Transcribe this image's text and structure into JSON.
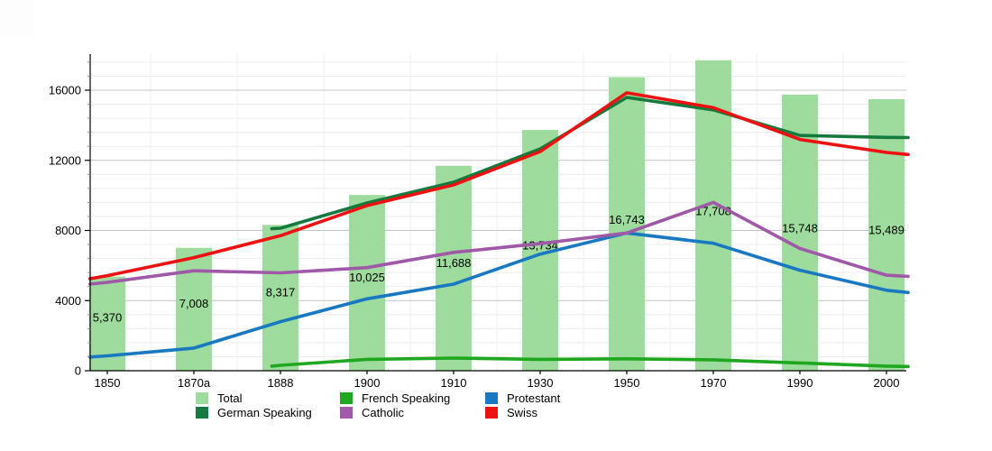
{
  "page": {
    "background": "#ffffff"
  },
  "chart_data": {
    "type": "bar+line",
    "title": "",
    "xlabel": "",
    "ylabel": "",
    "categories": [
      "1850",
      "1870a",
      "1888",
      "1900",
      "1910",
      "1930",
      "1950",
      "1970",
      "1990",
      "2000"
    ],
    "bar_series": {
      "name": "Total",
      "color": "#9EDC9E",
      "values": [
        5370,
        7008,
        8317,
        10025,
        11688,
        13734,
        16743,
        17708,
        15748,
        15489
      ],
      "labels": [
        "5,370",
        "7,008",
        "8,317",
        "10,025",
        "11,688",
        "13,734",
        "16,743",
        "17,708",
        "15,748",
        "15,489"
      ]
    },
    "line_series": [
      {
        "name": "German Speaking",
        "color": "#147A3E",
        "points": [
          [
            1.9,
            8100
          ],
          [
            2,
            8130
          ],
          [
            3,
            9570
          ],
          [
            4,
            10750
          ],
          [
            5,
            12650
          ],
          [
            6,
            15590
          ],
          [
            7,
            14880
          ],
          [
            8,
            13420
          ],
          [
            9,
            13310
          ],
          [
            9.25,
            13300
          ]
        ]
      },
      {
        "name": "French Speaking",
        "color": "#1FA81F",
        "points": [
          [
            1.9,
            260
          ],
          [
            2,
            310
          ],
          [
            3,
            650
          ],
          [
            4,
            720
          ],
          [
            5,
            650
          ],
          [
            6,
            680
          ],
          [
            7,
            620
          ],
          [
            8,
            440
          ],
          [
            9,
            260
          ],
          [
            9.25,
            240
          ]
        ]
      },
      {
        "name": "Protestant",
        "color": "#1878C2",
        "points": [
          [
            -0.2,
            780
          ],
          [
            0,
            850
          ],
          [
            1,
            1290
          ],
          [
            2,
            2800
          ],
          [
            3,
            4100
          ],
          [
            4,
            4940
          ],
          [
            5,
            6650
          ],
          [
            6,
            7855
          ],
          [
            7,
            7270
          ],
          [
            8,
            5730
          ],
          [
            9,
            4590
          ],
          [
            9.25,
            4460
          ]
        ]
      },
      {
        "name": "Catholic",
        "color": "#A058A8",
        "points": [
          [
            -0.2,
            4940
          ],
          [
            0,
            5040
          ],
          [
            1,
            5700
          ],
          [
            2,
            5580
          ],
          [
            3,
            5880
          ],
          [
            4,
            6750
          ],
          [
            5,
            7250
          ],
          [
            6,
            7855
          ],
          [
            7,
            9600
          ],
          [
            8,
            6970
          ],
          [
            9,
            5450
          ],
          [
            9.25,
            5380
          ]
        ]
      },
      {
        "name": "Swiss",
        "color": "#EE1111",
        "points": [
          [
            -0.2,
            5250
          ],
          [
            0,
            5420
          ],
          [
            1,
            6450
          ],
          [
            2,
            7700
          ],
          [
            3,
            9420
          ],
          [
            4,
            10600
          ],
          [
            5,
            12500
          ],
          [
            6,
            15850
          ],
          [
            7,
            15000
          ],
          [
            8,
            13190
          ],
          [
            9,
            12450
          ],
          [
            9.25,
            12330
          ]
        ]
      }
    ],
    "y_ticks": [
      "0",
      "4000",
      "8000",
      "12000",
      "16000"
    ],
    "y_tick_values": [
      0,
      4000,
      8000,
      12000,
      16000
    ],
    "ylim": [
      0,
      18058
    ],
    "minor_grid_step": 800,
    "grid": true,
    "legend_position": "bottom"
  },
  "legend": {
    "rows": [
      [
        {
          "label": "Total",
          "color": "#9EDC9E"
        },
        {
          "label": "French Speaking",
          "color": "#1FA81F"
        },
        {
          "label": "Protestant",
          "color": "#1878C2"
        }
      ],
      [
        {
          "label": "German Speaking",
          "color": "#147A3E"
        },
        {
          "label": "Catholic",
          "color": "#A058A8"
        },
        {
          "label": "Swiss",
          "color": "#EE1111"
        }
      ]
    ]
  }
}
